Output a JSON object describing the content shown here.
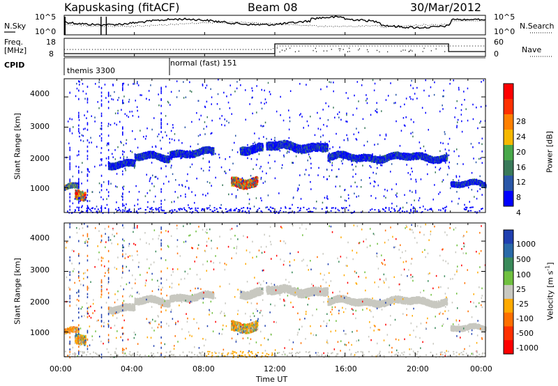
{
  "header": {
    "station": "Kapuskasing (fitACF)",
    "beam": "Beam 08",
    "date": "30/Mar/2012"
  },
  "nsky_panel": {
    "left_label": "N.Sky",
    "right_label": "N.Search",
    "left_ticks": [
      "10^5",
      "10^0"
    ],
    "right_ticks": [
      "10^5",
      "10^0"
    ]
  },
  "freq_panel": {
    "left_label_line1": "Freq.",
    "left_label_line2": "[MHz]",
    "right_label": "Nave",
    "left_ticks": [
      "18",
      "8"
    ],
    "right_ticks": [
      "60",
      "0"
    ]
  },
  "cpid_panel": {
    "label": "CPID",
    "modes": [
      {
        "name": "themis 3300",
        "start_hour": 0
      },
      {
        "name": "normal (fast) 151",
        "start_hour": 6
      }
    ]
  },
  "time_axis": {
    "label": "Time UT",
    "ticks": [
      "00:00",
      "04:00",
      "08:00",
      "12:00",
      "16:00",
      "20:00",
      "00:00"
    ],
    "range_hours": [
      0,
      24
    ]
  },
  "power_panel": {
    "ylabel": "Slant Range [km]",
    "yticks": [
      "1000",
      "2000",
      "3000",
      "4000"
    ],
    "colorbar_label": "Power [dB]",
    "colorbar_ticks": [
      "4",
      "8",
      "12",
      "16",
      "20",
      "24",
      "28"
    ],
    "colorbar_colors": [
      "#0000ff",
      "#2a57a8",
      "#3a7a5a",
      "#49a84a",
      "#f6b800",
      "#ff8000",
      "#ff3000",
      "#ff0000"
    ]
  },
  "velocity_panel": {
    "ylabel": "Slant Range [km]",
    "yticks": [
      "1000",
      "2000",
      "3000",
      "4000"
    ],
    "colorbar_label": "Velocity [m s",
    "colorbar_label_sup": "-1",
    "colorbar_label_end": "]",
    "colorbar_ticks": [
      "1000",
      "500",
      "100",
      "25",
      "-25",
      "-100",
      "-500",
      "-1000"
    ],
    "colorbar_colors": [
      "#2040b0",
      "#2a6aa8",
      "#3a8a5a",
      "#70c040",
      "#c8c8c0",
      "#ffaa00",
      "#ff7000",
      "#ff3000",
      "#ff0000"
    ]
  },
  "chart_data": [
    {
      "type": "heatmap",
      "title": "Power",
      "x_range_hours": [
        0,
        24
      ],
      "y_range_km": [
        180,
        4600
      ],
      "echo_bands": [
        {
          "x": [
            0.0,
            0.8
          ],
          "y_center": 1000,
          "y_width": 150,
          "level": "mid"
        },
        {
          "x": [
            0.6,
            1.2
          ],
          "y_center": 700,
          "y_width": 300,
          "level": "high"
        },
        {
          "x": [
            2.5,
            4.0
          ],
          "y_center": 1800,
          "y_width": 200,
          "level": "low"
        },
        {
          "x": [
            4.0,
            6.0
          ],
          "y_center": 2000,
          "y_width": 200,
          "level": "low"
        },
        {
          "x": [
            6.0,
            8.5
          ],
          "y_center": 2150,
          "y_width": 200,
          "level": "low"
        },
        {
          "x": [
            9.5,
            11.0
          ],
          "y_center": 1200,
          "y_width": 300,
          "level": "high"
        },
        {
          "x": [
            10.0,
            11.3
          ],
          "y_center": 2300,
          "y_width": 250,
          "level": "low"
        },
        {
          "x": [
            11.5,
            15.0
          ],
          "y_center": 2350,
          "y_width": 250,
          "level": "low"
        },
        {
          "x": [
            15.0,
            21.8
          ],
          "y_center": 2000,
          "y_width": 200,
          "level": "low"
        },
        {
          "x": [
            22.0,
            24.0
          ],
          "y_center": 1100,
          "y_width": 150,
          "level": "low"
        }
      ]
    },
    {
      "type": "heatmap",
      "title": "Velocity",
      "x_range_hours": [
        0,
        24
      ],
      "y_range_km": [
        180,
        4600
      ]
    }
  ]
}
